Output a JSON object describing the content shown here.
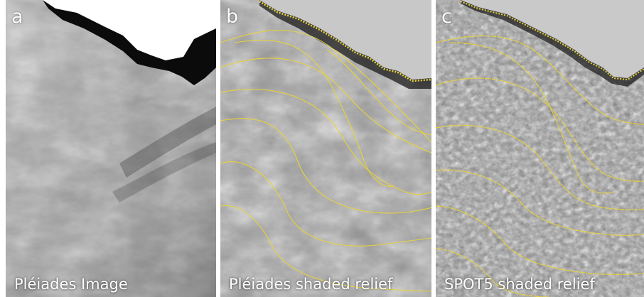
{
  "panels": [
    {
      "letter": "a",
      "caption": "Pléiades Image"
    },
    {
      "letter": "b",
      "caption": "Pléiades shaded relief"
    },
    {
      "letter": "c",
      "caption": "SPOT5 shaded relief"
    }
  ],
  "colors": {
    "contour": "#e8d23a",
    "background_gray": "#c8c8c8",
    "shadow": "#000000"
  }
}
